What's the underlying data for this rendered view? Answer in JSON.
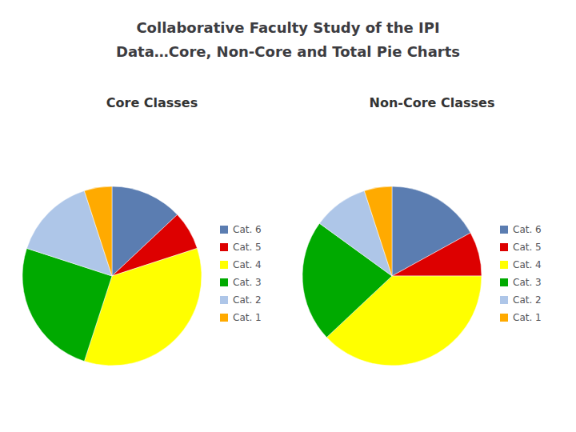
{
  "title": [
    "Collaborative Faculty Study of the IPI",
    "Data…Core, Non-Core and Total Pie Charts"
  ],
  "chart_data": [
    {
      "type": "pie",
      "title": "Core Classes",
      "categories": [
        "Cat. 6",
        "Cat. 5",
        "Cat. 4",
        "Cat. 3",
        "Cat. 2",
        "Cat. 1"
      ],
      "values": [
        13,
        7,
        35,
        25,
        15,
        5
      ],
      "colors": [
        "#5b7db1",
        "#dd0000",
        "#ffff00",
        "#00aa00",
        "#aec6e8",
        "#ffaa00"
      ],
      "legend": "right"
    },
    {
      "type": "pie",
      "title": "Non-Core Classes",
      "categories": [
        "Cat. 6",
        "Cat. 5",
        "Cat. 4",
        "Cat. 3",
        "Cat. 2",
        "Cat. 1"
      ],
      "values": [
        17,
        8,
        38,
        22,
        10,
        5
      ],
      "colors": [
        "#5b7db1",
        "#dd0000",
        "#ffff00",
        "#00aa00",
        "#aec6e8",
        "#ffaa00"
      ],
      "legend": "right"
    }
  ]
}
